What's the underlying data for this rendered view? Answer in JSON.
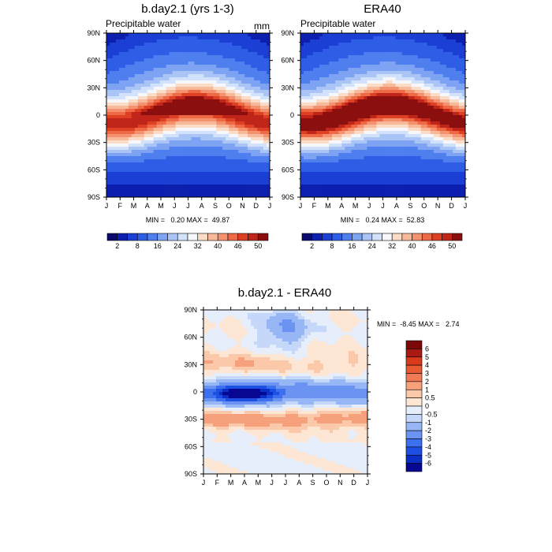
{
  "palette_abs": [
    "#0a0a6e",
    "#0c1fae",
    "#1b3fd4",
    "#2f5ee6",
    "#4f7fef",
    "#7ea3f3",
    "#aac4f6",
    "#d2e2fa",
    "#f5f7fb",
    "#fbdcc6",
    "#f8b99b",
    "#f4926f",
    "#ee6a46",
    "#de4024",
    "#c0251a",
    "#8c0f0f"
  ],
  "palette_diff": [
    "#070791",
    "#0b2fc4",
    "#1d4fe3",
    "#3d70ef",
    "#6a93f2",
    "#97b6f6",
    "#c6d8fa",
    "#e6eefc",
    "#fde6d4",
    "#fbc8aa",
    "#f6a07c",
    "#f07a55",
    "#e85a32",
    "#d83a1c",
    "#a81a12",
    "#7c0808"
  ],
  "chart_data": [
    {
      "type": "heatmap",
      "title": "b.day2.1 (yrs 1-3)",
      "subtitle_left": "Precipitable water",
      "subtitle_right": "mm",
      "x_ticks": [
        "J",
        "F",
        "M",
        "A",
        "M",
        "J",
        "J",
        "A",
        "S",
        "O",
        "N",
        "D",
        "J"
      ],
      "y_ticks": [
        "90N",
        "60N",
        "30N",
        "0",
        "30S",
        "60S",
        "90S"
      ],
      "stats": "MIN =   0.20 MAX =  49.87",
      "min": 0.2,
      "max": 49.87,
      "colorbar_labels": [
        "2",
        "8",
        "16",
        "24",
        "32",
        "40",
        "46",
        "50"
      ]
    },
    {
      "type": "heatmap",
      "title": "ERA40",
      "subtitle_left": "Precipitable water",
      "x_ticks": [
        "J",
        "F",
        "M",
        "A",
        "M",
        "J",
        "J",
        "A",
        "S",
        "O",
        "N",
        "D",
        "J"
      ],
      "y_ticks": [
        "90N",
        "60N",
        "30N",
        "0",
        "30S",
        "60S",
        "90S"
      ],
      "stats": "MIN =   0.24 MAX =  52.83",
      "min": 0.24,
      "max": 52.83,
      "colorbar_labels": [
        "2",
        "8",
        "16",
        "24",
        "32",
        "40",
        "46",
        "50"
      ]
    },
    {
      "type": "heatmap",
      "title": "b.day2.1 - ERA40",
      "x_ticks": [
        "J",
        "F",
        "M",
        "A",
        "M",
        "J",
        "J",
        "A",
        "S",
        "O",
        "N",
        "D",
        "J"
      ],
      "y_ticks": [
        "90N",
        "60N",
        "30N",
        "0",
        "30S",
        "60S",
        "90S"
      ],
      "stats": "MIN =  -8.45 MAX =   2.74",
      "min": -8.45,
      "max": 2.74,
      "colorbar_labels": [
        "6",
        "5",
        "4",
        "3",
        "2",
        "1",
        "0.5",
        "0",
        "-0.5",
        "-1",
        "-2",
        "-3",
        "-4",
        "-5",
        "-6"
      ]
    }
  ]
}
